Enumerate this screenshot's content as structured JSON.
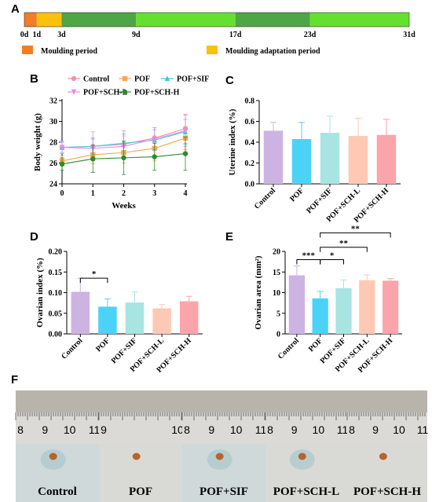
{
  "panels": {
    "A": "A",
    "B": "B",
    "C": "C",
    "D": "D",
    "E": "E",
    "F": "F"
  },
  "colors": {
    "moulding": "#f07e27",
    "adaptation": "#fcc10e",
    "dark_green": "#4ea646",
    "light_green": "#66e02e",
    "control": "#cdb3e2",
    "pof": "#4cd2f7",
    "sif": "#a8e4e2",
    "schl": "#fdc9b4",
    "schh": "#fba5aa"
  },
  "chart_data": [
    {
      "panel": "A",
      "type": "timeline",
      "days": [
        0,
        1,
        3,
        9,
        17,
        23,
        31
      ],
      "tick_labels": [
        "0d",
        "1d",
        "3d",
        "9d",
        "17d",
        "23d",
        "31d"
      ],
      "segments": [
        {
          "from": 0,
          "to": 1,
          "color": "#f07e27"
        },
        {
          "from": 1,
          "to": 3,
          "color": "#fcc10e"
        },
        {
          "from": 3,
          "to": 9,
          "color": "#4ea646"
        },
        {
          "from": 9,
          "to": 17,
          "color": "#66e02e"
        },
        {
          "from": 17,
          "to": 23,
          "color": "#4ea646"
        },
        {
          "from": 23,
          "to": 31,
          "color": "#66e02e"
        }
      ],
      "legend": [
        {
          "label": "Moulding period",
          "color": "#f07e27"
        },
        {
          "label": "Moulding adaptation period",
          "color": "#fcc10e"
        }
      ]
    },
    {
      "panel": "B",
      "type": "line",
      "xlabel": "Weeks",
      "ylabel": "Body weight (g)",
      "x": [
        0,
        1,
        2,
        3,
        4
      ],
      "xlim": [
        0,
        4
      ],
      "ylim": [
        24,
        32
      ],
      "yticks": [
        24,
        26,
        28,
        30,
        32
      ],
      "series": [
        {
          "name": "Control",
          "color": "#f78fa7",
          "marker": "circle",
          "values": [
            27.5,
            27.6,
            27.8,
            28.4,
            29.3
          ],
          "errors": [
            0.6,
            1.4,
            1.3,
            1.0,
            1.4
          ]
        },
        {
          "name": "POF",
          "color": "#f9a64a",
          "marker": "square",
          "values": [
            26.2,
            26.8,
            27.0,
            27.4,
            28.4
          ],
          "errors": [
            0.5,
            0.9,
            1.0,
            1.2,
            1.1
          ]
        },
        {
          "name": "POF+SIF",
          "color": "#3ec9d4",
          "marker": "triangle",
          "values": [
            27.5,
            27.6,
            27.9,
            28.2,
            29.0
          ],
          "errors": [
            0.5,
            0.8,
            0.9,
            1.0,
            1.2
          ]
        },
        {
          "name": "POF+SCH-L",
          "color": "#e68be6",
          "marker": "triangle-down",
          "values": [
            27.5,
            27.4,
            27.6,
            28.3,
            29.1
          ],
          "errors": [
            0.6,
            0.9,
            1.0,
            1.1,
            1.5
          ]
        },
        {
          "name": "POF+SCH-H",
          "color": "#2d8a2d",
          "marker": "circle",
          "values": [
            25.9,
            26.4,
            26.5,
            26.6,
            26.9
          ],
          "errors": [
            0.6,
            1.3,
            1.6,
            1.3,
            1.6
          ]
        }
      ]
    },
    {
      "panel": "C",
      "type": "bar",
      "ylabel": "Uterine index (%)",
      "categories": [
        "Control",
        "POF",
        "POF+SIF",
        "POF+SCH-L",
        "POF+SCH-H"
      ],
      "values": [
        0.51,
        0.43,
        0.49,
        0.46,
        0.47
      ],
      "errors": [
        0.08,
        0.16,
        0.16,
        0.17,
        0.15
      ],
      "ylim": [
        0,
        0.8
      ],
      "yticks": [
        "0.0",
        "0.2",
        "0.4",
        "0.6",
        "0.8"
      ]
    },
    {
      "panel": "D",
      "type": "bar",
      "ylabel": "Ovarian index (%)",
      "categories": [
        "Control",
        "POF",
        "POF+SIF",
        "POF+SCH-L",
        "POF+SCH-H"
      ],
      "values": [
        0.102,
        0.066,
        0.076,
        0.062,
        0.079
      ],
      "errors": [
        0.033,
        0.019,
        0.026,
        0.009,
        0.012
      ],
      "ylim": [
        0,
        0.2
      ],
      "yticks": [
        "0.00",
        "0.05",
        "0.10",
        "0.15",
        "0.20"
      ],
      "significance": [
        {
          "from": 0,
          "to": 1,
          "y": 0.135,
          "label": "*"
        }
      ]
    },
    {
      "panel": "E",
      "type": "bar",
      "ylabel": "Ovarian area (mm²)",
      "categories": [
        "Control",
        "POF",
        "POF+SIF",
        "POF+SCH-L",
        "POF+SCH-H"
      ],
      "values": [
        14.2,
        8.6,
        11.1,
        13.0,
        12.9
      ],
      "errors": [
        2.3,
        1.7,
        2.0,
        1.3,
        0.5
      ],
      "ylim": [
        0,
        20
      ],
      "yticks": [
        "0",
        "5",
        "10",
        "15",
        "20"
      ],
      "significance": [
        {
          "from": 0,
          "to": 1,
          "y": 18.0,
          "label": "***"
        },
        {
          "from": 1,
          "to": 2,
          "y": 18.0,
          "label": "*"
        },
        {
          "from": 1,
          "to": 3,
          "y": 21.0,
          "label": "**"
        },
        {
          "from": 1,
          "to": 4,
          "y": 24.5,
          "label": "**"
        }
      ]
    }
  ],
  "photos": {
    "labels": [
      "Control",
      "POF",
      "POF+SIF",
      "POF+SCH-L",
      "POF+SCH-H"
    ],
    "ruler_numbers": [
      [
        "8",
        "9",
        "10",
        "11"
      ],
      [
        "9",
        "10"
      ],
      [
        "8",
        "9",
        "10",
        "11"
      ],
      [
        "8",
        "9",
        "10",
        "11"
      ],
      [
        "8",
        "9",
        "10",
        "11"
      ]
    ]
  }
}
